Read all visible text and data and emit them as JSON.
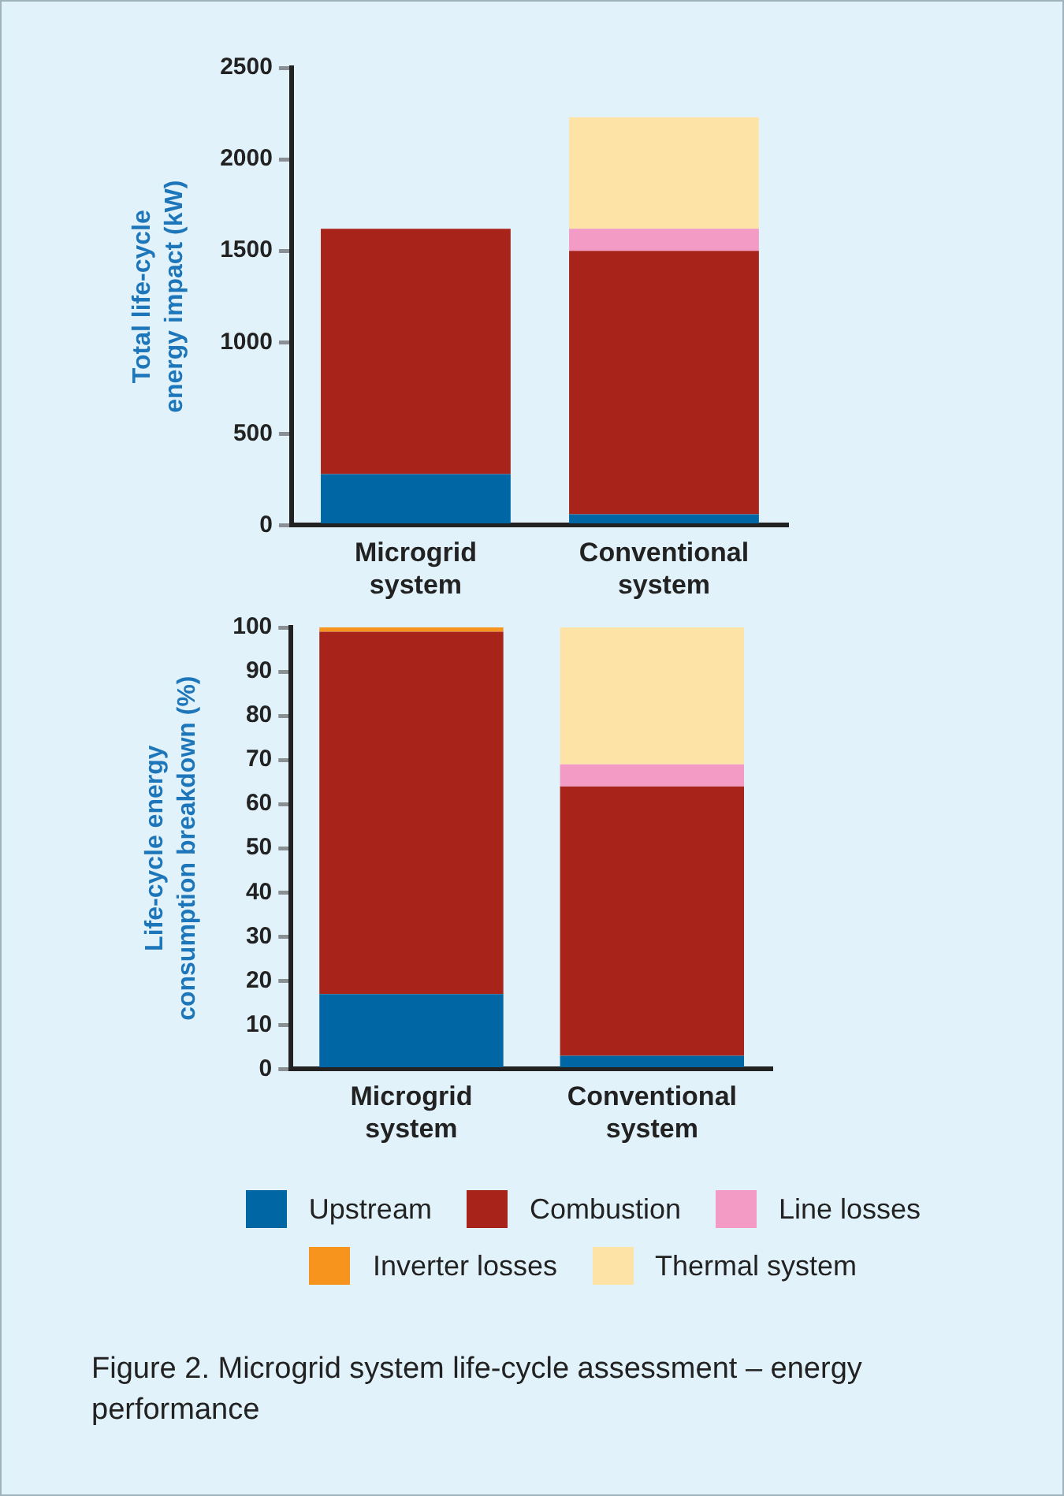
{
  "chart_data": [
    {
      "type": "bar",
      "stacked": true,
      "ylabel": "Total life-cycle energy impact (kW)",
      "categories": [
        "Microgrid system",
        "Conventional system"
      ],
      "ylim": [
        0,
        2500
      ],
      "yticks": [
        0,
        500,
        1000,
        1500,
        2000,
        2500
      ],
      "grid": false,
      "legend": false,
      "series": [
        {
          "color": "#0066a4",
          "values": [
            280,
            60
          ]
        },
        {
          "color": "#a8241a",
          "values": [
            1340,
            1440
          ]
        },
        {
          "color": "#f39bc4",
          "values": [
            null,
            120
          ]
        },
        {
          "color": "#fee3a6",
          "values": [
            null,
            610
          ]
        }
      ]
    },
    {
      "type": "bar",
      "stacked": true,
      "ylabel": "Life-cycle energy consumption breakdown (%)",
      "categories": [
        "Microgrid system",
        "Conventional system"
      ],
      "ylim": [
        0,
        100
      ],
      "yticks": [
        0,
        10,
        20,
        30,
        40,
        50,
        60,
        70,
        80,
        90,
        100
      ],
      "grid": false,
      "legend": "bottom",
      "annotations": [
        "Figure 2. Microgrid system life-cycle assessment – energy performance"
      ],
      "series": [
        {
          "name": "Upstream",
          "color": "#0066a4",
          "values": [
            17,
            3
          ]
        },
        {
          "name": "Combustion",
          "color": "#a8241a",
          "values": [
            82,
            61
          ]
        },
        {
          "name": "Line losses",
          "color": "#f39bc4",
          "values": [
            null,
            5
          ]
        },
        {
          "name": "Inverter losses",
          "color": "#f7941d",
          "values": [
            1,
            null
          ]
        },
        {
          "name": "Thermal system",
          "color": "#fee3a6",
          "values": [
            null,
            31
          ]
        }
      ]
    }
  ]
}
